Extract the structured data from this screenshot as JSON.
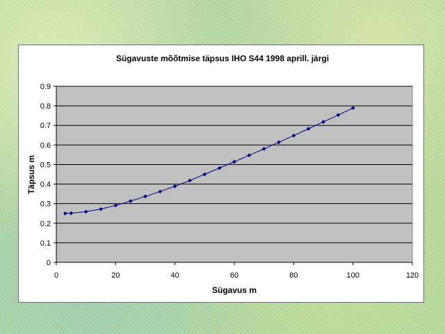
{
  "chart_data": {
    "type": "line",
    "title": "Sügavuste mõõtmise täpsus IHO S44 1998 aprill. järgi",
    "xlabel": "Sügavus m",
    "ylabel": "Täpsus m",
    "xlim": [
      0,
      120
    ],
    "ylim": [
      0,
      0.9
    ],
    "x_ticks": [
      "0",
      "20",
      "40",
      "60",
      "80",
      "100",
      "120"
    ],
    "y_ticks": [
      "0",
      "0.1",
      "0.2",
      "0.3",
      "0.4",
      "0.5",
      "0.6",
      "0.7",
      "0.8",
      "0.9"
    ],
    "grid": "horizontal",
    "legend": "none",
    "plot_background": "#c0c0c0",
    "series_color": "#000080",
    "series": [
      {
        "x": [
          3,
          5,
          10,
          15,
          20,
          25,
          30,
          35,
          40,
          45,
          50,
          55,
          60,
          65,
          70,
          75,
          80,
          85,
          90,
          95,
          100
        ],
        "y": [
          0.25,
          0.251,
          0.259,
          0.272,
          0.291,
          0.313,
          0.337,
          0.362,
          0.389,
          0.418,
          0.45,
          0.482,
          0.514,
          0.547,
          0.58,
          0.614,
          0.648,
          0.683,
          0.718,
          0.753,
          0.789
        ]
      }
    ]
  }
}
